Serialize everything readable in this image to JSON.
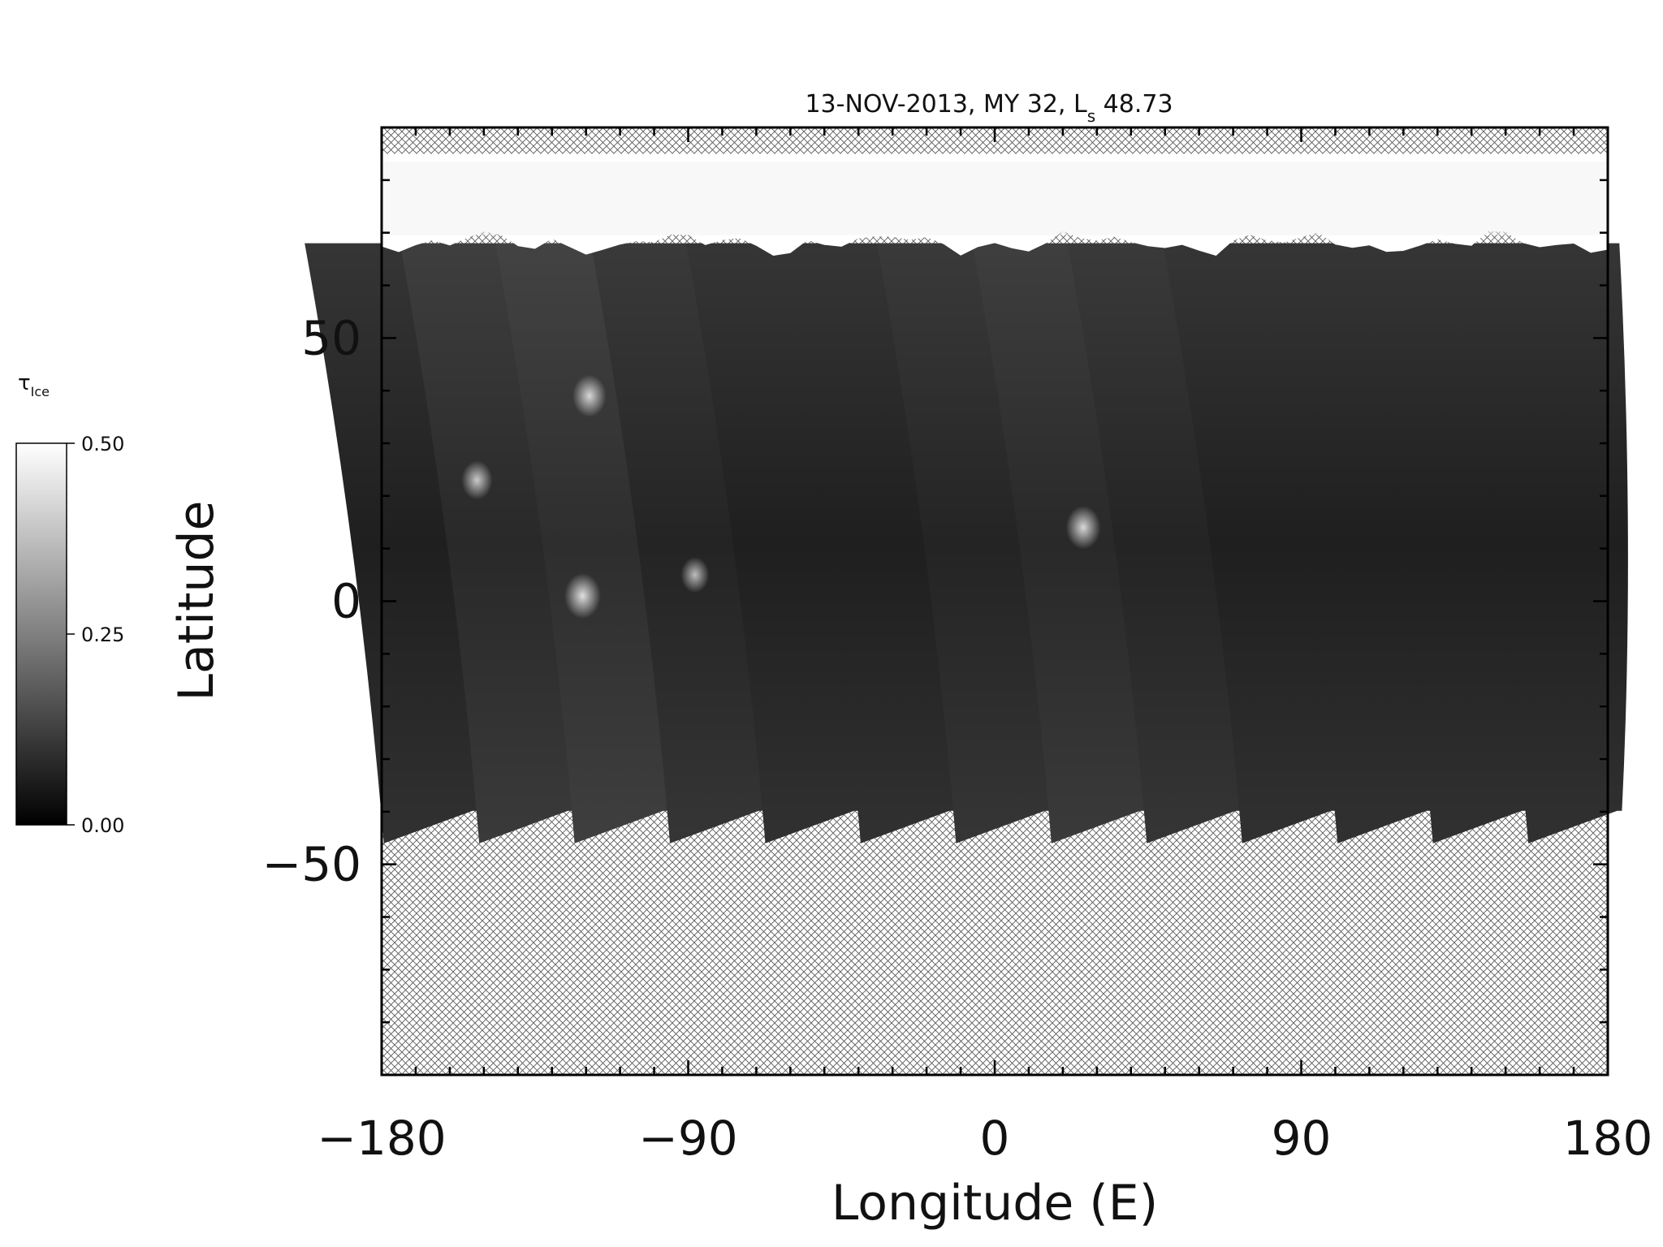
{
  "chart_data": {
    "type": "heatmap",
    "title": "13-NOV-2013, MY 32,  L",
    "title_sub": "s",
    "title_suffix": " 48.73",
    "xlabel": "Longitude (E)",
    "ylabel": "Latitude",
    "xlim": [
      -180,
      180
    ],
    "ylim": [
      -90,
      90
    ],
    "xticks": [
      -180,
      -90,
      0,
      90,
      180
    ],
    "xtick_labels": [
      "−180",
      "−90",
      "0",
      "90",
      "180"
    ],
    "yticks": [
      -50,
      0,
      50
    ],
    "ytick_labels": [
      "−50",
      "0",
      "50"
    ],
    "x_minor_step": 10,
    "y_minor_step": 10,
    "colorbar": {
      "label": "τ",
      "label_sub": "Ice",
      "min": 0.0,
      "max": 0.5,
      "ticks": [
        0.0,
        0.25,
        0.5
      ],
      "tick_labels": [
        "0.00",
        "0.25",
        "0.50"
      ],
      "colormap": "grayscale"
    },
    "no_data_pattern": "crosshatch",
    "polar_cap": {
      "lat_min": 68,
      "lat_max": 85,
      "value": 0.5
    },
    "swaths": [
      {
        "center_lon": -171,
        "lat_top": 68,
        "lat_bottom": -46,
        "mean_value": 0.06
      },
      {
        "center_lon": -143,
        "lat_top": 68,
        "lat_bottom": -46,
        "mean_value": 0.08
      },
      {
        "center_lon": -115,
        "lat_top": 68,
        "lat_bottom": -46,
        "mean_value": 0.09
      },
      {
        "center_lon": -87,
        "lat_top": 68,
        "lat_bottom": -46,
        "mean_value": 0.07
      },
      {
        "center_lon": -59,
        "lat_top": 68,
        "lat_bottom": -46,
        "mean_value": 0.06
      },
      {
        "center_lon": -31,
        "lat_top": 68,
        "lat_bottom": -46,
        "mean_value": 0.06
      },
      {
        "center_lon": -3,
        "lat_top": 68,
        "lat_bottom": -46,
        "mean_value": 0.07
      },
      {
        "center_lon": 25,
        "lat_top": 68,
        "lat_bottom": -46,
        "mean_value": 0.08
      },
      {
        "center_lon": 53,
        "lat_top": 68,
        "lat_bottom": -46,
        "mean_value": 0.07
      },
      {
        "center_lon": 81,
        "lat_top": 68,
        "lat_bottom": -46,
        "mean_value": 0.06
      },
      {
        "center_lon": 109,
        "lat_top": 68,
        "lat_bottom": -46,
        "mean_value": 0.06
      },
      {
        "center_lon": 137,
        "lat_top": 68,
        "lat_bottom": -46,
        "mean_value": 0.06
      },
      {
        "center_lon": 165,
        "lat_top": 68,
        "lat_bottom": -46,
        "mean_value": 0.06
      }
    ],
    "bright_spots": [
      {
        "lon": -152,
        "lat": 23,
        "value": 0.35
      },
      {
        "lon": -119,
        "lat": 39,
        "value": 0.4
      },
      {
        "lon": -121,
        "lat": 1,
        "value": 0.45
      },
      {
        "lon": -88,
        "lat": 5,
        "value": 0.3
      },
      {
        "lon": 26,
        "lat": 14,
        "value": 0.42
      }
    ]
  }
}
